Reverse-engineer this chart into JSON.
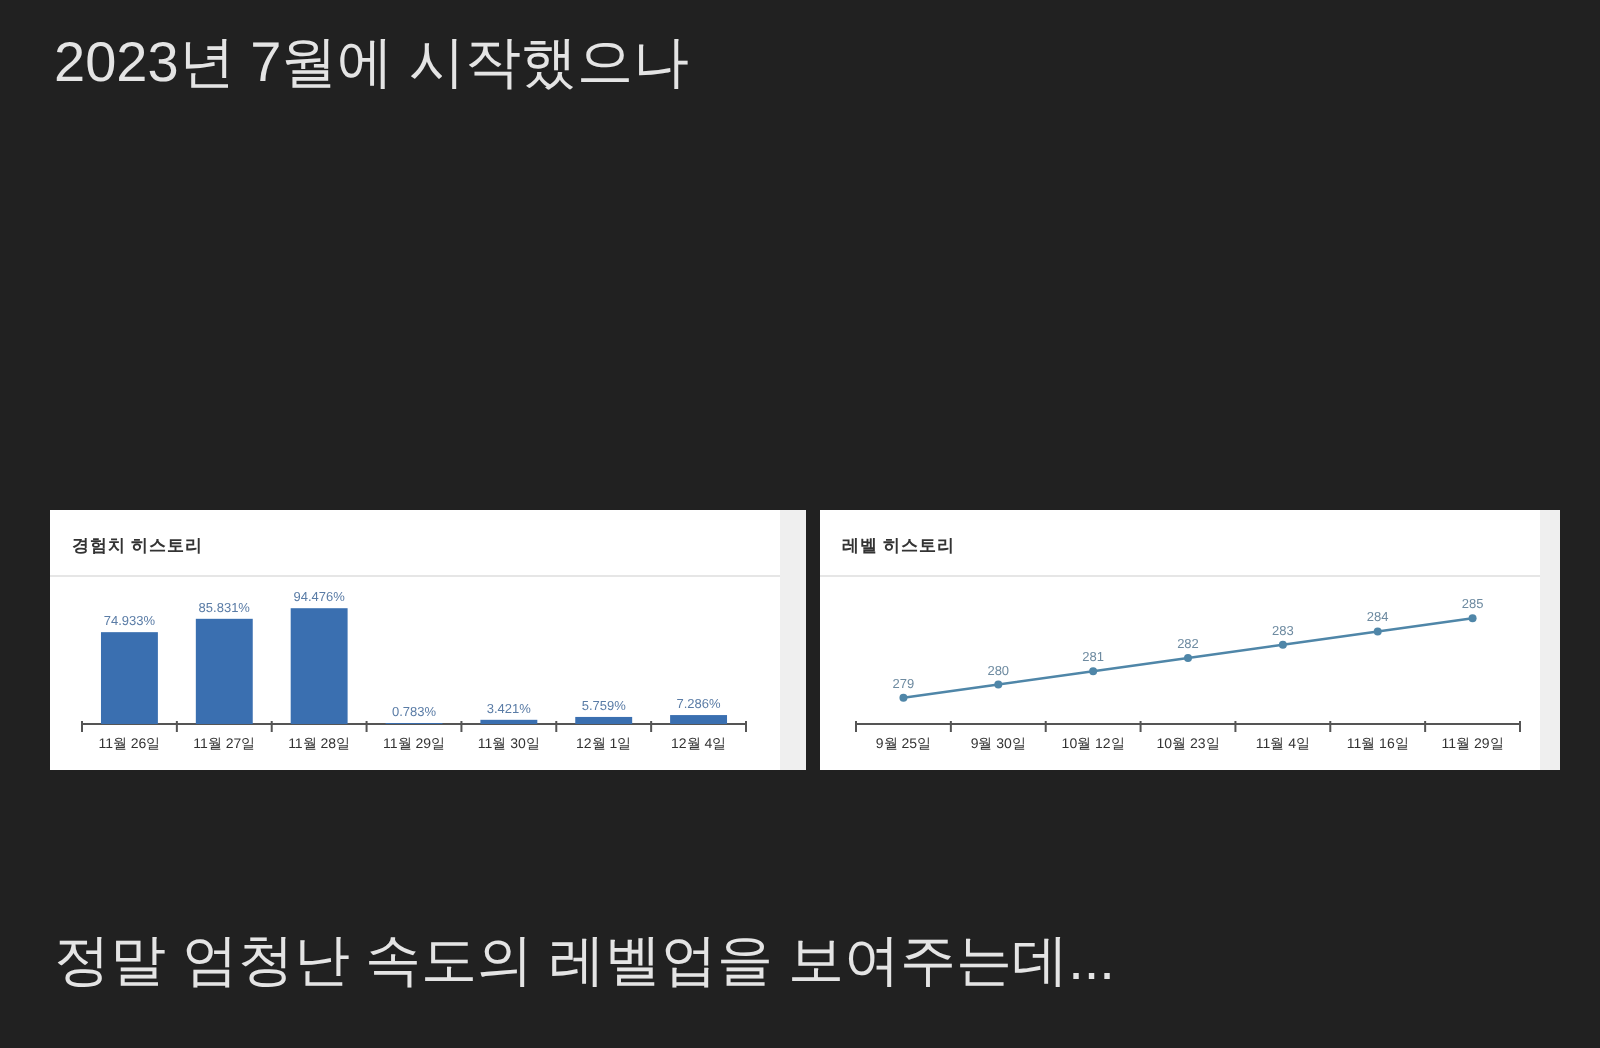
{
  "chart_data": [
    {
      "type": "other",
      "annotations": [
        "2023년 7월에 시작했으나"
      ]
    },
    {
      "type": "bar",
      "title": "경험치 히스토리",
      "categories": [
        "11월 26일",
        "11월 27일",
        "11월 28일",
        "11월 29일",
        "11월 30일",
        "12월 1일",
        "12월 4일"
      ],
      "values": [
        74.933,
        85.831,
        94.476,
        0.783,
        3.421,
        5.759,
        7.286
      ],
      "value_labels": [
        "74.933%",
        "85.831%",
        "94.476%",
        "0.783%",
        "3.421%",
        "5.759%",
        "7.286%"
      ],
      "color": "#3a6fb0",
      "tick_labels": "x"
    },
    {
      "type": "line",
      "title": "레벨 히스토리",
      "categories": [
        "9월 25일",
        "9월 30일",
        "10월 12일",
        "10월 23일",
        "11월 4일",
        "11월 16일",
        "11월 29일"
      ],
      "values": [
        279,
        280,
        281,
        282,
        283,
        284,
        285
      ],
      "color": "#4f86a8",
      "marker": "circle",
      "data_labels": true,
      "tick_labels": "x"
    },
    {
      "type": "other",
      "annotations": [
        "정말 엄청난 속도의 레벨업을 보여주는데..."
      ]
    }
  ]
}
